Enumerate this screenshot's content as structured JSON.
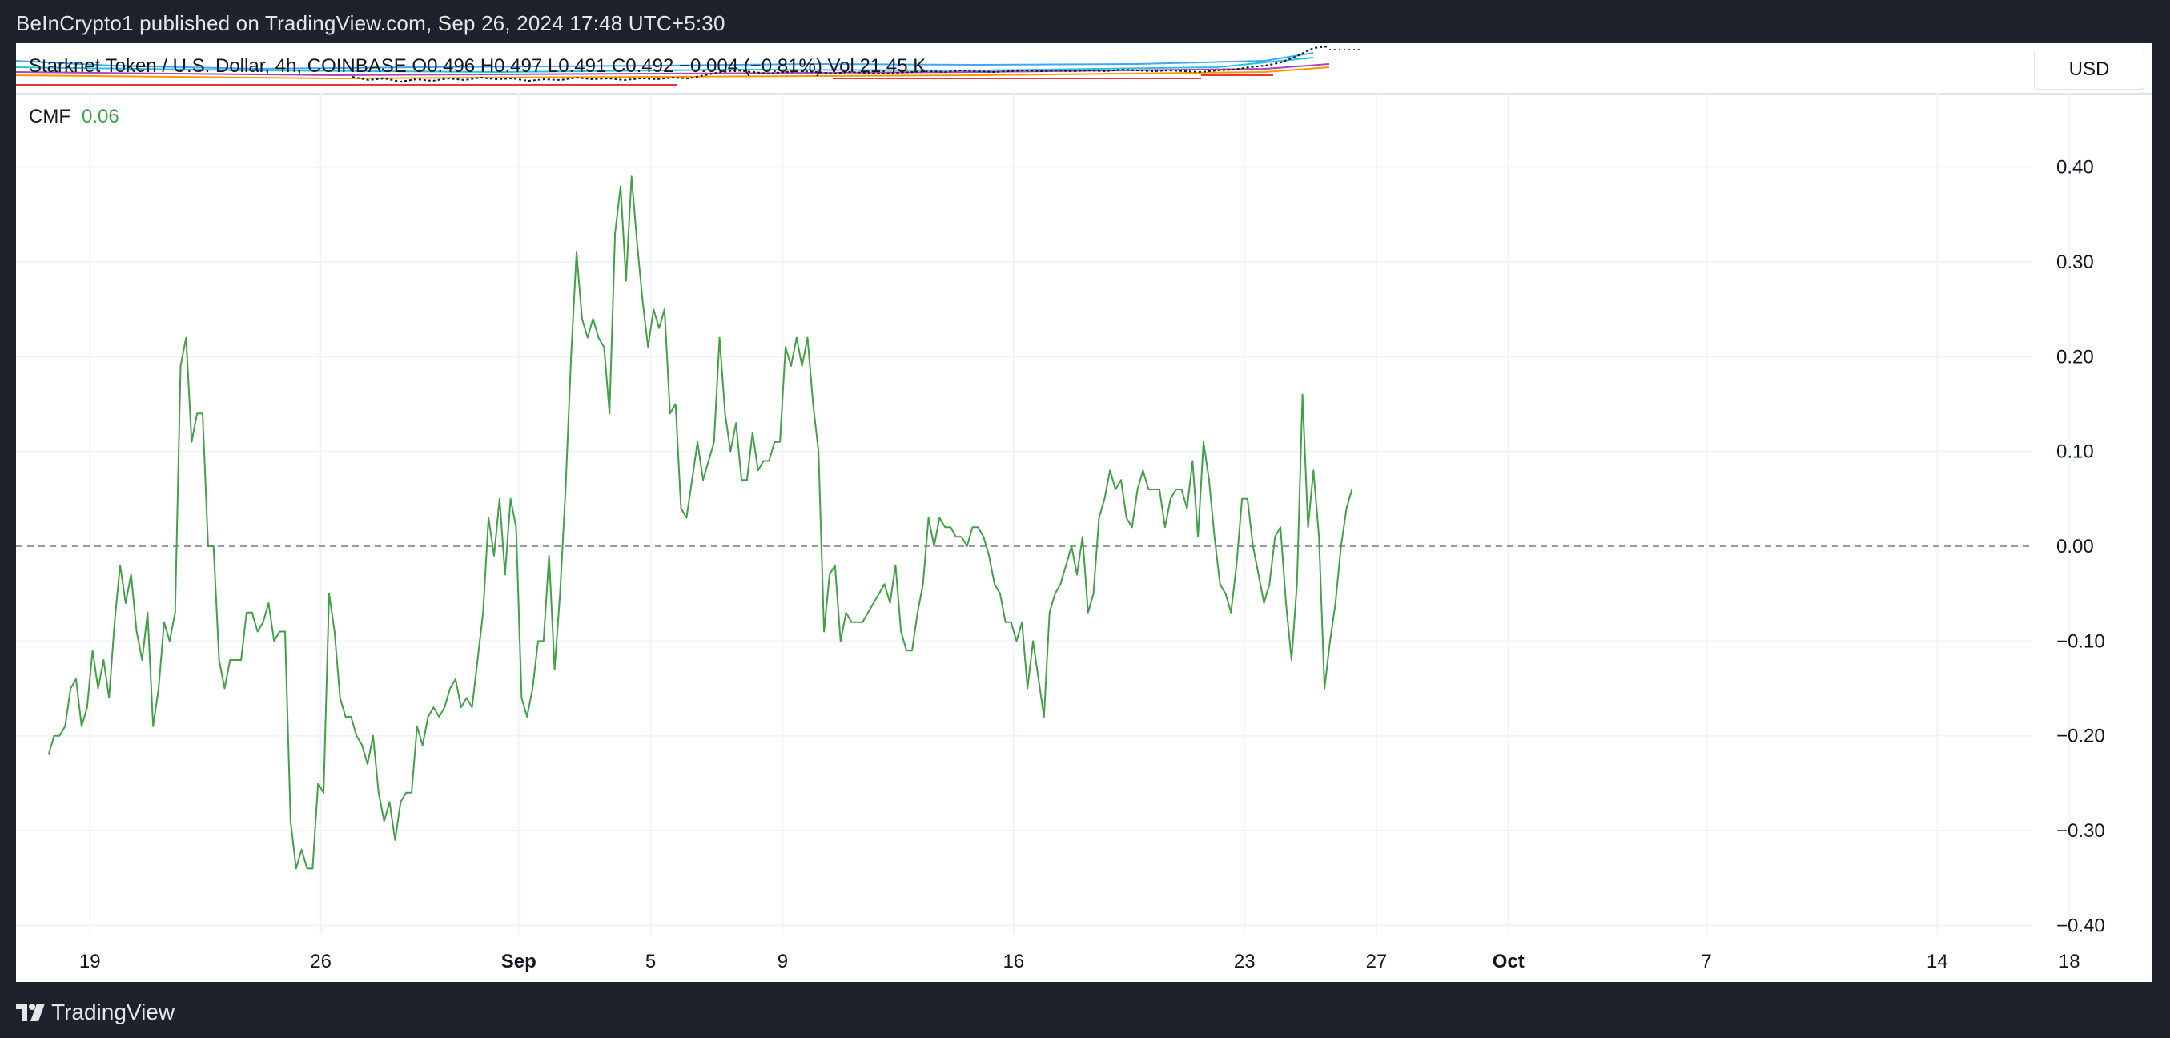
{
  "header": {
    "publisher": "BeInCrypto1 published on TradingView.com, Sep 26, 2024 17:48 UTC+5:30"
  },
  "main_pane": {
    "legend": "Starknet Token / U.S. Dollar, 4h, COINBASE  O0.496  H0.497  L0.491  C0.492  −0.004 (−0.81%)  Vol 21.45 K",
    "currency": "USD"
  },
  "indicator": {
    "name": "CMF",
    "value": "0.06",
    "line_color": "#43a047"
  },
  "footer": {
    "brand": "TradingView"
  },
  "chart_data": {
    "type": "line",
    "title": "",
    "ylim": [
      -0.42,
      0.44
    ],
    "y_ticks": [
      "0.40",
      "0.30",
      "0.20",
      "0.10",
      "0.00",
      "−0.10",
      "−0.20",
      "−0.30",
      "−0.40"
    ],
    "y_tick_values": [
      0.4,
      0.3,
      0.2,
      0.1,
      0.0,
      -0.1,
      -0.2,
      -0.3,
      -0.4
    ],
    "zero_line": 0.0,
    "x_ticks": [
      {
        "label": "19",
        "day": 1,
        "bold": false
      },
      {
        "label": "26",
        "day": 8,
        "bold": false
      },
      {
        "label": "Sep",
        "day": 14,
        "bold": true
      },
      {
        "label": "5",
        "day": 18,
        "bold": false
      },
      {
        "label": "9",
        "day": 22,
        "bold": false
      },
      {
        "label": "16",
        "day": 29,
        "bold": false
      },
      {
        "label": "23",
        "day": 36,
        "bold": false
      },
      {
        "label": "27",
        "day": 40,
        "bold": false
      },
      {
        "label": "Oct",
        "day": 44,
        "bold": true
      },
      {
        "label": "7",
        "day": 50,
        "bold": false
      },
      {
        "label": "14",
        "day": 57,
        "bold": false
      },
      {
        "label": "18",
        "day": 61,
        "bold": false
      }
    ],
    "series": [
      {
        "color": "#43a047",
        "x_start_day": -0.25,
        "step_days": 0.1667,
        "values": [
          -0.22,
          -0.2,
          -0.2,
          -0.19,
          -0.15,
          -0.14,
          -0.19,
          -0.17,
          -0.11,
          -0.15,
          -0.12,
          -0.16,
          -0.08,
          -0.02,
          -0.06,
          -0.03,
          -0.09,
          -0.12,
          -0.07,
          -0.19,
          -0.15,
          -0.08,
          -0.1,
          -0.07,
          0.19,
          0.22,
          0.11,
          0.14,
          0.14,
          0.0,
          0.0,
          -0.12,
          -0.15,
          -0.12,
          -0.12,
          -0.12,
          -0.07,
          -0.07,
          -0.09,
          -0.08,
          -0.06,
          -0.1,
          -0.09,
          -0.09,
          -0.29,
          -0.34,
          -0.32,
          -0.34,
          -0.34,
          -0.25,
          -0.26,
          -0.05,
          -0.09,
          -0.16,
          -0.18,
          -0.18,
          -0.2,
          -0.21,
          -0.23,
          -0.2,
          -0.26,
          -0.29,
          -0.27,
          -0.31,
          -0.27,
          -0.26,
          -0.26,
          -0.19,
          -0.21,
          -0.18,
          -0.17,
          -0.18,
          -0.17,
          -0.15,
          -0.14,
          -0.17,
          -0.16,
          -0.17,
          -0.12,
          -0.07,
          0.03,
          -0.01,
          0.05,
          -0.03,
          0.05,
          0.02,
          -0.16,
          -0.18,
          -0.15,
          -0.1,
          -0.1,
          -0.01,
          -0.13,
          -0.05,
          0.06,
          0.2,
          0.31,
          0.24,
          0.22,
          0.24,
          0.22,
          0.21,
          0.14,
          0.33,
          0.38,
          0.28,
          0.39,
          0.32,
          0.26,
          0.21,
          0.25,
          0.23,
          0.25,
          0.14,
          0.15,
          0.04,
          0.03,
          0.07,
          0.11,
          0.07,
          0.09,
          0.11,
          0.22,
          0.14,
          0.1,
          0.13,
          0.07,
          0.07,
          0.12,
          0.08,
          0.09,
          0.09,
          0.11,
          0.11,
          0.21,
          0.19,
          0.22,
          0.19,
          0.22,
          0.15,
          0.1,
          -0.09,
          -0.03,
          -0.02,
          -0.1,
          -0.07,
          -0.08,
          -0.08,
          -0.08,
          -0.07,
          -0.06,
          -0.05,
          -0.04,
          -0.06,
          -0.02,
          -0.09,
          -0.11,
          -0.11,
          -0.07,
          -0.04,
          0.03,
          0.0,
          0.03,
          0.02,
          0.02,
          0.01,
          0.01,
          0.0,
          0.02,
          0.02,
          0.01,
          -0.01,
          -0.04,
          -0.05,
          -0.08,
          -0.08,
          -0.1,
          -0.08,
          -0.15,
          -0.1,
          -0.14,
          -0.18,
          -0.07,
          -0.05,
          -0.04,
          -0.02,
          0.0,
          -0.03,
          0.01,
          -0.07,
          -0.05,
          0.03,
          0.05,
          0.08,
          0.06,
          0.07,
          0.03,
          0.02,
          0.06,
          0.08,
          0.06,
          0.06,
          0.06,
          0.02,
          0.05,
          0.06,
          0.06,
          0.04,
          0.09,
          0.01,
          0.11,
          0.07,
          0.01,
          -0.04,
          -0.05,
          -0.07,
          -0.02,
          0.05,
          0.05,
          0.0,
          -0.03,
          -0.06,
          -0.04,
          0.01,
          0.02,
          -0.06,
          -0.12,
          -0.04,
          0.16,
          0.02,
          0.08,
          0.01,
          -0.15,
          -0.1,
          -0.06,
          0.0,
          0.04,
          0.06
        ]
      }
    ]
  }
}
